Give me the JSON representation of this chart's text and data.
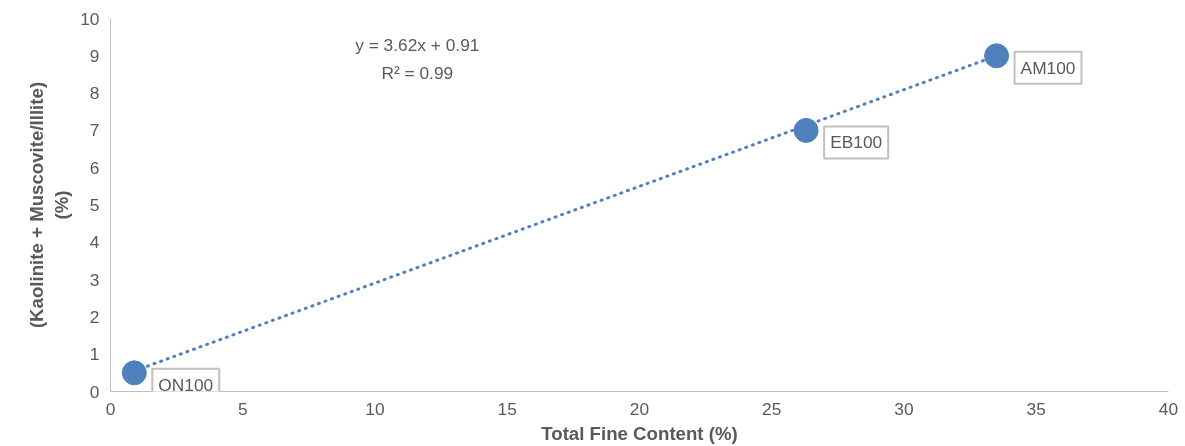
{
  "chart_data": {
    "type": "scatter",
    "xlabel": "Total Fine Content (%)",
    "ylabel": "(Kaolinite + Muscovite/Illite)\n(%)",
    "x": [
      0.9,
      26.3,
      33.5
    ],
    "series": [
      {
        "color": "#4f81bd",
        "values": [
          0.5,
          7.0,
          9.0
        ]
      },
      {
        "type": "line",
        "color": "#4f81bd",
        "line_style": "dotted",
        "marker": "none",
        "x": [
          0.9,
          33.5
        ],
        "values": [
          0.55,
          9.0
        ]
      }
    ],
    "xlim": [
      0,
      40
    ],
    "xticks": [
      0,
      5,
      10,
      15,
      20,
      25,
      30,
      35,
      40
    ],
    "ylim": [
      0,
      10
    ],
    "yticks": [
      0,
      1,
      2,
      3,
      4,
      5,
      6,
      7,
      8,
      9,
      10
    ],
    "grid": false,
    "marker": "circle",
    "annotations": [
      "y = 3.62x + 0.91",
      "R² = 0.99",
      {
        "text": "ON100",
        "x": 0.9,
        "y": 0.5
      },
      {
        "text": "EB100",
        "x": 26.3,
        "y": 7.0
      },
      {
        "text": "AM100",
        "x": 33.5,
        "y": 9.0
      }
    ]
  }
}
